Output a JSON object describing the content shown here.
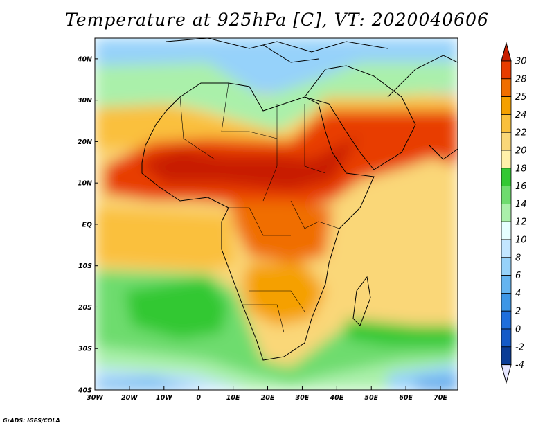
{
  "title": "Temperature at 925hPa [C], VT: 2020040606",
  "credit": "GrADS: IGES/COLA",
  "map": {
    "lon_range": [
      -30,
      75
    ],
    "lat_range": [
      -40,
      45
    ],
    "x_ticks": [
      {
        "value": -30,
        "label": "30W"
      },
      {
        "value": -20,
        "label": "20W"
      },
      {
        "value": -10,
        "label": "10W"
      },
      {
        "value": 0,
        "label": "0"
      },
      {
        "value": 10,
        "label": "10E"
      },
      {
        "value": 20,
        "label": "20E"
      },
      {
        "value": 30,
        "label": "30E"
      },
      {
        "value": 40,
        "label": "40E"
      },
      {
        "value": 50,
        "label": "50E"
      },
      {
        "value": 60,
        "label": "60E"
      },
      {
        "value": 70,
        "label": "70E"
      }
    ],
    "y_ticks": [
      {
        "value": 40,
        "label": "40N"
      },
      {
        "value": 30,
        "label": "30N"
      },
      {
        "value": 20,
        "label": "20N"
      },
      {
        "value": 10,
        "label": "10N"
      },
      {
        "value": 0,
        "label": "EQ"
      },
      {
        "value": -10,
        "label": "10S"
      },
      {
        "value": -20,
        "label": "20S"
      },
      {
        "value": -30,
        "label": "30S"
      },
      {
        "value": -40,
        "label": "40S"
      }
    ]
  },
  "colorbar": {
    "labels": [
      "30",
      "28",
      "25",
      "24",
      "22",
      "20",
      "18",
      "16",
      "14",
      "12",
      "10",
      "8",
      "6",
      "4",
      "2",
      "0",
      "-2",
      "-4"
    ],
    "colors": [
      "#c81e00",
      "#e83c00",
      "#f06e00",
      "#f5a000",
      "#fac03c",
      "#fad778",
      "#fff0aa",
      "#32c832",
      "#6edc6e",
      "#aaf0aa",
      "#e6ffff",
      "#c3e6ff",
      "#96d2fa",
      "#64b4f0",
      "#3c96e6",
      "#1e6edc",
      "#145ac8",
      "#0a3c96",
      "#0a1e6e"
    ],
    "top_color": "#c81e00",
    "bottom_color": "#e6e6ff"
  }
}
